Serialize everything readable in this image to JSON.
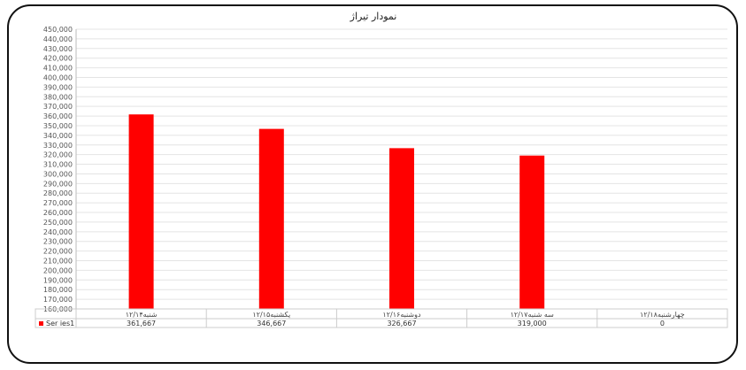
{
  "chart_data": {
    "type": "bar",
    "title": "نمودار تیراژ",
    "categories": [
      "شنبه۱۲/۱۴",
      "یکشنبه۱۲/۱۵",
      "دوشنبه۱۲/۱۶",
      "سه شنبه۱۲/۱۷",
      "چهارشنبه۱۲/۱۸"
    ],
    "series": [
      {
        "name": "Ser ies1",
        "values": [
          361667,
          346667,
          326667,
          319000,
          0
        ],
        "value_labels": [
          "361,667",
          "346,667",
          "326,667",
          "319,000",
          "0"
        ]
      }
    ],
    "ylim": [
      160000,
      450000
    ],
    "ytick_step": 10000,
    "grid": true,
    "legend_position": "bottom-left",
    "bar_color": "#ff0000"
  }
}
